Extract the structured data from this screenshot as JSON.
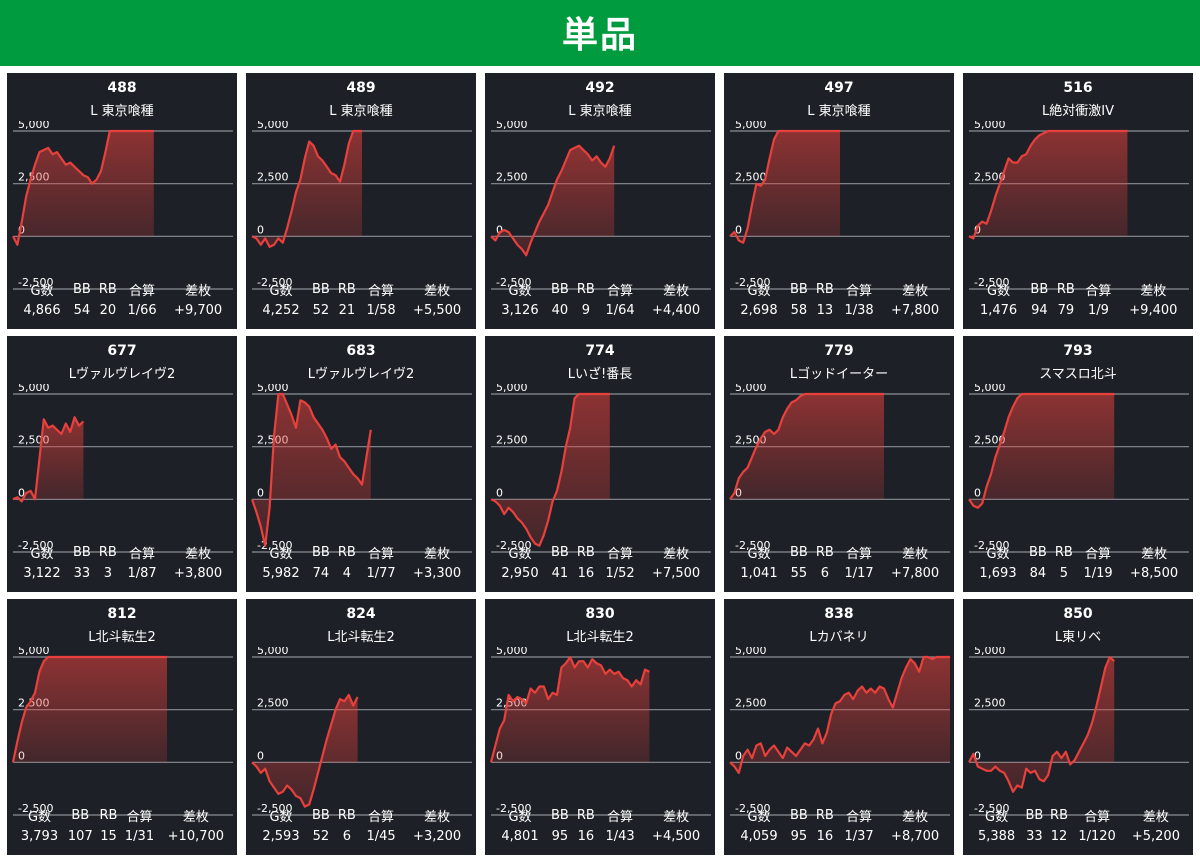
{
  "header": {
    "title": "単品"
  },
  "stat_labels": [
    "G数",
    "BB",
    "RB",
    "合算",
    "差枚"
  ],
  "colors": {
    "header": "#009a3f",
    "line": "#e8403c",
    "panel": "#1d2127",
    "grid": "#8a8f96"
  },
  "chart_data": [
    {
      "type": "area",
      "title": "488",
      "subtitle": "L 東京喰種",
      "ylim": [
        -2500,
        5000
      ],
      "yticks": [
        "5,000",
        "2,500",
        "0",
        "-2,500"
      ],
      "x": [
        0,
        1,
        2,
        3,
        4,
        5,
        6,
        7,
        8,
        9,
        10,
        11,
        12,
        13,
        14,
        15,
        16,
        17,
        18,
        19,
        20,
        21,
        22,
        23,
        24,
        25,
        26,
        27,
        28,
        29,
        30,
        31,
        32
      ],
      "y": [
        0,
        -400,
        700,
        1900,
        2700,
        3400,
        4000,
        4100,
        4200,
        3900,
        4000,
        3700,
        3400,
        3500,
        3300,
        3100,
        2900,
        2800,
        2500,
        2700,
        3100,
        4000,
        5000,
        5000,
        5000,
        5000,
        5000,
        5000,
        5000,
        5000,
        5000,
        5000,
        5000
      ],
      "stats": {
        "games": "4,866",
        "bb": "54",
        "rb": "20",
        "combined": "1/66",
        "diff": "+9,700"
      }
    },
    {
      "type": "area",
      "title": "489",
      "subtitle": "L 東京喰種",
      "ylim": [
        -2500,
        5000
      ],
      "yticks": [
        "5,000",
        "2,500",
        "0",
        "-2,500"
      ],
      "x": [
        0,
        1,
        2,
        3,
        4,
        5,
        6,
        7,
        8,
        9,
        10,
        11,
        12,
        13,
        14,
        15,
        16,
        17,
        18,
        19,
        20,
        21,
        22,
        23,
        24,
        25
      ],
      "y": [
        0,
        -100,
        -400,
        -100,
        -500,
        -400,
        -100,
        -300,
        400,
        1200,
        2100,
        2700,
        3700,
        4500,
        4300,
        3800,
        3600,
        3300,
        3000,
        2900,
        2600,
        3400,
        4400,
        5000,
        5000,
        5000
      ],
      "stats": {
        "games": "4,252",
        "bb": "52",
        "rb": "21",
        "combined": "1/58",
        "diff": "+5,500"
      }
    },
    {
      "type": "area",
      "title": "492",
      "subtitle": "L 東京喰種",
      "ylim": [
        -2500,
        5000
      ],
      "yticks": [
        "5,000",
        "2,500",
        "0",
        "-2,500"
      ],
      "x": [
        0,
        1,
        2,
        3,
        4,
        5,
        6,
        7,
        8,
        9,
        10,
        11,
        12,
        13,
        14,
        15,
        16,
        17,
        18,
        19,
        20,
        21,
        22,
        23,
        24,
        25,
        26,
        27,
        28
      ],
      "y": [
        0,
        -200,
        200,
        300,
        200,
        -100,
        -400,
        -600,
        -900,
        -300,
        200,
        700,
        1100,
        1500,
        2100,
        2700,
        3100,
        3600,
        4100,
        4200,
        4300,
        4100,
        3900,
        3600,
        3800,
        3500,
        3300,
        3700,
        4300
      ],
      "stats": {
        "games": "3,126",
        "bb": "40",
        "rb": "9",
        "combined": "1/64",
        "diff": "+4,400"
      }
    },
    {
      "type": "area",
      "title": "497",
      "subtitle": "L 東京喰種",
      "ylim": [
        -2500,
        5000
      ],
      "yticks": [
        "5,000",
        "2,500",
        "0",
        "-2,500"
      ],
      "x": [
        0,
        1,
        2,
        3,
        4,
        5,
        6,
        7,
        8,
        9,
        10,
        11,
        12,
        13,
        14,
        15,
        16,
        17,
        18,
        19,
        20,
        21,
        22,
        23,
        24,
        25
      ],
      "y": [
        0,
        200,
        -200,
        -300,
        400,
        1500,
        2500,
        2400,
        2700,
        3700,
        4600,
        5000,
        5000,
        5000,
        5000,
        5000,
        5000,
        5000,
        5000,
        5000,
        5000,
        5000,
        5000,
        5000,
        5000,
        5000
      ],
      "stats": {
        "games": "2,698",
        "bb": "58",
        "rb": "13",
        "combined": "1/38",
        "diff": "+7,800"
      }
    },
    {
      "type": "area",
      "title": "516",
      "subtitle": "L絶対衝激IV",
      "ylim": [
        -2500,
        5000
      ],
      "yticks": [
        "5,000",
        "2,500",
        "0",
        "-2,500"
      ],
      "x": [
        0,
        1,
        2,
        3,
        4,
        5,
        6,
        7,
        8,
        9,
        10,
        11,
        12,
        13,
        14,
        15,
        16,
        17,
        18,
        19,
        20,
        21,
        22,
        23,
        24,
        25,
        26,
        27,
        28,
        29,
        30,
        31,
        32,
        33,
        34,
        35,
        36
      ],
      "y": [
        0,
        -100,
        500,
        700,
        600,
        1200,
        1900,
        2500,
        3100,
        3700,
        3500,
        3500,
        3800,
        3900,
        4300,
        4600,
        4800,
        4900,
        5000,
        5000,
        5000,
        5000,
        5000,
        5000,
        5000,
        5000,
        5000,
        5000,
        5000,
        5000,
        5000,
        5000,
        5000,
        5000,
        5000,
        5000,
        5000
      ],
      "stats": {
        "games": "1,476",
        "bb": "94",
        "rb": "79",
        "combined": "1/9",
        "diff": "+9,400"
      }
    },
    {
      "type": "area",
      "title": "677",
      "subtitle": "Lヴァルヴレイヴ2",
      "ylim": [
        -2500,
        5000
      ],
      "yticks": [
        "5,000",
        "2,500",
        "0",
        "-2,500"
      ],
      "x": [
        0,
        1,
        2,
        3,
        4,
        5,
        6,
        7,
        8,
        9,
        10,
        11,
        12,
        13,
        14,
        15,
        16
      ],
      "y": [
        0,
        100,
        -100,
        300,
        400,
        0,
        1900,
        3800,
        3400,
        3500,
        3300,
        3100,
        3600,
        3200,
        3900,
        3500,
        3700
      ],
      "stats": {
        "games": "3,122",
        "bb": "33",
        "rb": "3",
        "combined": "1/87",
        "diff": "+3,800"
      }
    },
    {
      "type": "area",
      "title": "683",
      "subtitle": "Lヴァルヴレイヴ2",
      "ylim": [
        -2500,
        5000
      ],
      "yticks": [
        "5,000",
        "2,500",
        "0",
        "-2,500"
      ],
      "x": [
        0,
        1,
        2,
        3,
        4,
        5,
        6,
        7,
        8,
        9,
        10,
        11,
        12,
        13,
        14,
        15,
        16,
        17,
        18,
        19,
        20,
        21,
        22,
        23,
        24,
        25,
        26,
        27
      ],
      "y": [
        0,
        -600,
        -1300,
        -2200,
        -400,
        3000,
        5000,
        5000,
        4500,
        4000,
        3400,
        4700,
        4600,
        4400,
        3900,
        3600,
        3300,
        2900,
        2400,
        2600,
        2000,
        1800,
        1500,
        1200,
        1000,
        700,
        2000,
        3300
      ],
      "stats": {
        "games": "5,982",
        "bb": "74",
        "rb": "4",
        "combined": "1/77",
        "diff": "+3,300"
      }
    },
    {
      "type": "area",
      "title": "774",
      "subtitle": "Lいざ!番長",
      "ylim": [
        -2500,
        5000
      ],
      "yticks": [
        "5,000",
        "2,500",
        "0",
        "-2,500"
      ],
      "x": [
        0,
        1,
        2,
        3,
        4,
        5,
        6,
        7,
        8,
        9,
        10,
        11,
        12,
        13,
        14,
        15,
        16,
        17,
        18,
        19,
        20,
        21,
        22,
        23,
        24,
        25,
        26,
        27
      ],
      "y": [
        0,
        -100,
        -300,
        -700,
        -400,
        -600,
        -900,
        -1100,
        -1400,
        -1800,
        -2100,
        -2200,
        -1700,
        -1000,
        -100,
        400,
        1300,
        2500,
        3400,
        4800,
        5000,
        5000,
        5000,
        5000,
        5000,
        5000,
        5000,
        5000
      ],
      "stats": {
        "games": "2,950",
        "bb": "41",
        "rb": "16",
        "combined": "1/52",
        "diff": "+7,500"
      }
    },
    {
      "type": "area",
      "title": "779",
      "subtitle": "Lゴッドイーター",
      "ylim": [
        -2500,
        5000
      ],
      "yticks": [
        "5,000",
        "2,500",
        "0",
        "-2,500"
      ],
      "x": [
        0,
        1,
        2,
        3,
        4,
        5,
        6,
        7,
        8,
        9,
        10,
        11,
        12,
        13,
        14,
        15,
        16,
        17,
        18,
        19,
        20,
        21,
        22,
        23,
        24,
        25,
        26,
        27,
        28,
        29,
        30,
        31,
        32,
        33,
        34,
        35
      ],
      "y": [
        0,
        300,
        1000,
        1300,
        1500,
        2000,
        2500,
        2900,
        3200,
        3300,
        3100,
        3300,
        3900,
        4300,
        4600,
        4700,
        4900,
        5000,
        5000,
        5000,
        5000,
        5000,
        5000,
        5000,
        5000,
        5000,
        5000,
        5000,
        5000,
        5000,
        5000,
        5000,
        5000,
        5000,
        5000,
        5000
      ],
      "stats": {
        "games": "1,041",
        "bb": "55",
        "rb": "6",
        "combined": "1/17",
        "diff": "+7,800"
      }
    },
    {
      "type": "area",
      "title": "793",
      "subtitle": "スマスロ北斗",
      "ylim": [
        -2500,
        5000
      ],
      "yticks": [
        "5,000",
        "2,500",
        "0",
        "-2,500"
      ],
      "x": [
        0,
        1,
        2,
        3,
        4,
        5,
        6,
        7,
        8,
        9,
        10,
        11,
        12,
        13,
        14,
        15,
        16,
        17,
        18,
        19,
        20,
        21,
        22,
        23,
        24,
        25,
        26,
        27,
        28,
        29,
        30,
        31,
        32,
        33
      ],
      "y": [
        0,
        -300,
        -400,
        -200,
        600,
        1200,
        2000,
        2600,
        3200,
        3900,
        4400,
        4800,
        5000,
        5000,
        5000,
        5000,
        5000,
        5000,
        5000,
        5000,
        5000,
        5000,
        5000,
        5000,
        5000,
        5000,
        5000,
        5000,
        5000,
        5000,
        5000,
        5000,
        5000,
        5000
      ],
      "stats": {
        "games": "1,693",
        "bb": "84",
        "rb": "5",
        "combined": "1/19",
        "diff": "+8,500"
      }
    },
    {
      "type": "area",
      "title": "812",
      "subtitle": "L北斗転生2",
      "ylim": [
        -2500,
        5000
      ],
      "yticks": [
        "5,000",
        "2,500",
        "0",
        "-2,500"
      ],
      "x": [
        0,
        1,
        2,
        3,
        4,
        5,
        6,
        7,
        8,
        9,
        10,
        11,
        12,
        13,
        14,
        15,
        16,
        17,
        18,
        19,
        20,
        21,
        22,
        23,
        24,
        25,
        26,
        27,
        28,
        29,
        30,
        31,
        32,
        33,
        34,
        35
      ],
      "y": [
        0,
        1000,
        1900,
        2600,
        2900,
        3300,
        4300,
        4800,
        5000,
        5000,
        5000,
        5000,
        5000,
        5000,
        5000,
        5000,
        5000,
        5000,
        5000,
        5000,
        5000,
        5000,
        5000,
        5000,
        5000,
        5000,
        5000,
        5000,
        5000,
        5000,
        5000,
        5000,
        5000,
        5000,
        5000,
        5000
      ],
      "stats": {
        "games": "3,793",
        "bb": "107",
        "rb": "15",
        "combined": "1/31",
        "diff": "+10,700"
      }
    },
    {
      "type": "area",
      "title": "824",
      "subtitle": "L北斗転生2",
      "ylim": [
        -2500,
        5000
      ],
      "yticks": [
        "5,000",
        "2,500",
        "0",
        "-2,500"
      ],
      "x": [
        0,
        1,
        2,
        3,
        4,
        5,
        6,
        7,
        8,
        9,
        10,
        11,
        12,
        13,
        14,
        15,
        16,
        17,
        18,
        19,
        20,
        21,
        22,
        23,
        24
      ],
      "y": [
        0,
        -200,
        -500,
        -300,
        -900,
        -1200,
        -1500,
        -1400,
        -1100,
        -1300,
        -1600,
        -1700,
        -2100,
        -2000,
        -1300,
        -500,
        300,
        1100,
        1800,
        2500,
        3000,
        2900,
        3200,
        2700,
        3100
      ],
      "stats": {
        "games": "2,593",
        "bb": "52",
        "rb": "6",
        "combined": "1/45",
        "diff": "+3,200"
      }
    },
    {
      "type": "area",
      "title": "830",
      "subtitle": "L北斗転生2",
      "ylim": [
        -2500,
        5000
      ],
      "yticks": [
        "5,000",
        "2,500",
        "0",
        "-2,500"
      ],
      "x": [
        0,
        1,
        2,
        3,
        4,
        5,
        6,
        7,
        8,
        9,
        10,
        11,
        12,
        13,
        14,
        15,
        16,
        17,
        18,
        19,
        20,
        21,
        22,
        23,
        24,
        25,
        26,
        27,
        28,
        29,
        30,
        31,
        32,
        33,
        34,
        35,
        36
      ],
      "y": [
        0,
        800,
        1600,
        2000,
        3200,
        2900,
        3100,
        3000,
        2800,
        3500,
        3300,
        3600,
        3600,
        3000,
        3300,
        3200,
        4500,
        4700,
        5000,
        4500,
        4800,
        4800,
        4500,
        4900,
        4700,
        4600,
        4200,
        4400,
        4200,
        4300,
        4000,
        3900,
        3600,
        3900,
        3700,
        4400,
        4300
      ],
      "stats": {
        "games": "4,801",
        "bb": "95",
        "rb": "16",
        "combined": "1/43",
        "diff": "+4,500"
      }
    },
    {
      "type": "area",
      "title": "838",
      "subtitle": "Lカバネリ",
      "ylim": [
        -2500,
        5000
      ],
      "yticks": [
        "5,000",
        "2,500",
        "0",
        "-2,500"
      ],
      "x": [
        0,
        1,
        2,
        3,
        4,
        5,
        6,
        7,
        8,
        9,
        10,
        11,
        12,
        13,
        14,
        15,
        16,
        17,
        18,
        19,
        20,
        21,
        22,
        23,
        24,
        25,
        26,
        27,
        28,
        29,
        30,
        31,
        32,
        33,
        34,
        35,
        36,
        37,
        38,
        39,
        40,
        41,
        42,
        43,
        44,
        45,
        46,
        47,
        48,
        49,
        50
      ],
      "y": [
        0,
        -200,
        -500,
        300,
        600,
        200,
        800,
        900,
        300,
        600,
        800,
        500,
        200,
        700,
        500,
        300,
        600,
        900,
        800,
        1100,
        1600,
        900,
        1400,
        2300,
        2800,
        2900,
        3200,
        3300,
        3000,
        3400,
        3600,
        3300,
        3500,
        3300,
        3600,
        3500,
        3000,
        2600,
        3300,
        4000,
        4500,
        4900,
        4700,
        4300,
        5000,
        5000,
        4900,
        5000,
        5000,
        5000,
        5000
      ],
      "stats": {
        "games": "4,059",
        "bb": "95",
        "rb": "16",
        "combined": "1/37",
        "diff": "+8,700"
      }
    },
    {
      "type": "area",
      "title": "850",
      "subtitle": "L東リベ",
      "ylim": [
        -2500,
        5000
      ],
      "yticks": [
        "5,000",
        "2,500",
        "0",
        "-2,500"
      ],
      "x": [
        0,
        1,
        2,
        3,
        4,
        5,
        6,
        7,
        8,
        9,
        10,
        11,
        12,
        13,
        14,
        15,
        16,
        17,
        18,
        19,
        20,
        21,
        22,
        23,
        24,
        25,
        26,
        27,
        28,
        29,
        30,
        31,
        32,
        33
      ],
      "y": [
        0,
        400,
        -200,
        -300,
        -400,
        -400,
        -200,
        -400,
        -500,
        -900,
        -1400,
        -1100,
        -1200,
        -300,
        -500,
        -400,
        -800,
        -900,
        -600,
        300,
        500,
        200,
        500,
        -100,
        100,
        500,
        900,
        1300,
        1900,
        2700,
        3600,
        4500,
        5000,
        4800
      ],
      "stats": {
        "games": "5,388",
        "bb": "33",
        "rb": "12",
        "combined": "1/120",
        "diff": "+5,200"
      }
    }
  ]
}
